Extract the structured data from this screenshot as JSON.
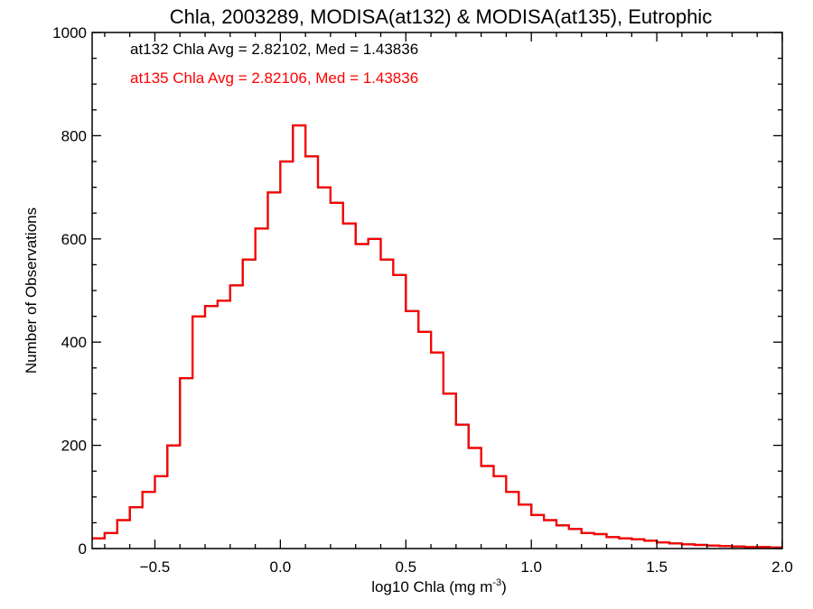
{
  "chart_data": {
    "type": "histogram-step",
    "title": "Chla, 2003289, MODISA(at132) & MODISA(at135), Eutrophic",
    "xlabel_main": "log10 Chla (mg m",
    "xlabel_sup": "-3",
    "xlabel_close": ")",
    "ylabel": "Number of Observations",
    "xlim": [
      -0.75,
      2.0
    ],
    "ylim": [
      0,
      1000
    ],
    "x_ticks": [
      -0.5,
      0.0,
      0.5,
      1.0,
      1.5,
      2.0
    ],
    "x_tick_labels": [
      "−0.5",
      "0.0",
      "0.5",
      "1.0",
      "1.5",
      "2.0"
    ],
    "y_ticks": [
      0,
      200,
      400,
      600,
      800,
      1000
    ],
    "y_tick_labels": [
      "0",
      "200",
      "400",
      "600",
      "800",
      "1000"
    ],
    "annotations": [
      {
        "text": "at132 Chla Avg = 2.82102, Med = 1.43836",
        "color": "#000000"
      },
      {
        "text": "at135 Chla Avg = 2.82106, Med = 1.43836",
        "color": "#ff0000"
      }
    ],
    "series": [
      {
        "color": "#000000",
        "x": [
          -0.75,
          -0.7,
          -0.65,
          -0.6,
          -0.55,
          -0.5,
          -0.45,
          -0.4,
          -0.35,
          -0.3,
          -0.25,
          -0.2,
          -0.15,
          -0.1,
          -0.05,
          0.0,
          0.05,
          0.1,
          0.15,
          0.2,
          0.25,
          0.3,
          0.35,
          0.4,
          0.45,
          0.5,
          0.55,
          0.6,
          0.65,
          0.7,
          0.75,
          0.8,
          0.85,
          0.9,
          0.95,
          1.0,
          1.05,
          1.1,
          1.15,
          1.2,
          1.25,
          1.3,
          1.35,
          1.4,
          1.45,
          1.5,
          1.55,
          1.6,
          1.65,
          1.7,
          1.75,
          1.8,
          1.85,
          1.9,
          1.95,
          2.0
        ],
        "y": [
          20,
          30,
          55,
          80,
          110,
          140,
          200,
          330,
          450,
          470,
          480,
          510,
          560,
          620,
          690,
          750,
          820,
          760,
          700,
          670,
          630,
          590,
          600,
          560,
          530,
          460,
          420,
          380,
          300,
          240,
          195,
          160,
          140,
          110,
          85,
          65,
          55,
          45,
          38,
          30,
          28,
          22,
          20,
          18,
          15,
          12,
          10,
          8,
          7,
          6,
          5,
          4,
          3,
          3,
          2,
          2
        ]
      },
      {
        "color": "#ff0000",
        "x": [
          -0.75,
          -0.7,
          -0.65,
          -0.6,
          -0.55,
          -0.5,
          -0.45,
          -0.4,
          -0.35,
          -0.3,
          -0.25,
          -0.2,
          -0.15,
          -0.1,
          -0.05,
          0.0,
          0.05,
          0.1,
          0.15,
          0.2,
          0.25,
          0.3,
          0.35,
          0.4,
          0.45,
          0.5,
          0.55,
          0.6,
          0.65,
          0.7,
          0.75,
          0.8,
          0.85,
          0.9,
          0.95,
          1.0,
          1.05,
          1.1,
          1.15,
          1.2,
          1.25,
          1.3,
          1.35,
          1.4,
          1.45,
          1.5,
          1.55,
          1.6,
          1.65,
          1.7,
          1.75,
          1.8,
          1.85,
          1.9,
          1.95,
          2.0
        ],
        "y": [
          20,
          30,
          55,
          80,
          110,
          140,
          200,
          330,
          450,
          470,
          480,
          510,
          560,
          620,
          690,
          750,
          820,
          760,
          700,
          670,
          630,
          590,
          600,
          560,
          530,
          460,
          420,
          380,
          300,
          240,
          195,
          160,
          140,
          110,
          85,
          65,
          55,
          45,
          38,
          30,
          28,
          22,
          20,
          18,
          15,
          12,
          10,
          8,
          7,
          6,
          5,
          4,
          3,
          3,
          2,
          2
        ]
      }
    ]
  }
}
